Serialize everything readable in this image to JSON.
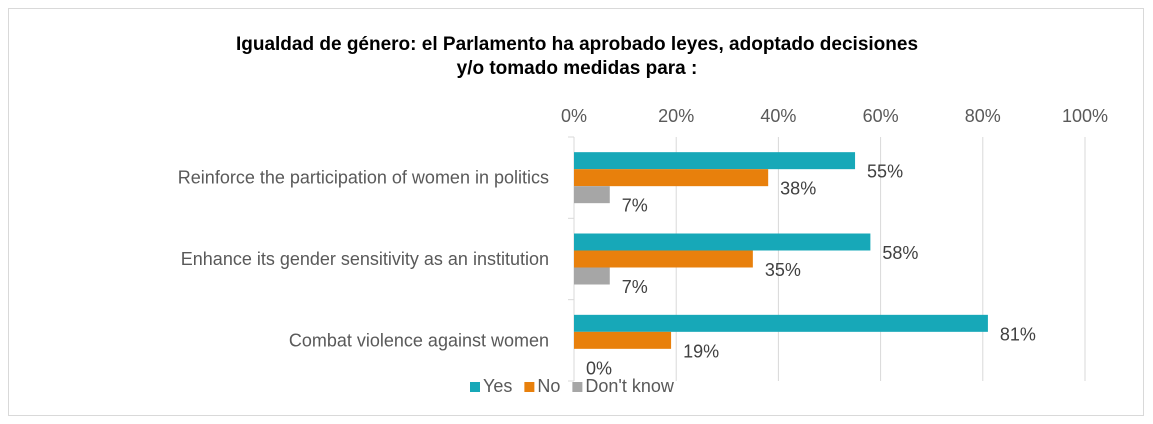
{
  "chart_data": {
    "type": "bar",
    "orientation": "horizontal",
    "title_lines": [
      "Igualdad de género: el Parlamento ha aprobado leyes, adoptado decisiones",
      "y/o tomado medidas para :"
    ],
    "categories": [
      "Reinforce the participation of women in politics",
      "Enhance its gender sensitivity as an institution",
      "Combat violence against women"
    ],
    "series": [
      {
        "name": "Yes",
        "color": "#17A8B8",
        "values": [
          55,
          58,
          81
        ],
        "labels": [
          "55%",
          "58%",
          "81%"
        ]
      },
      {
        "name": "No",
        "color": "#E8800C",
        "values": [
          38,
          35,
          19
        ],
        "labels": [
          "38%",
          "35%",
          "19%"
        ]
      },
      {
        "name": "Don't know",
        "color": "#A6A6A6",
        "values": [
          7,
          7,
          0
        ],
        "labels": [
          "7%",
          "7%",
          "0%"
        ]
      }
    ],
    "xlim": [
      0,
      100
    ],
    "x_ticks": [
      "0%",
      "20%",
      "40%",
      "60%",
      "80%",
      "100%"
    ],
    "x_axis_position": "top",
    "grid": true,
    "legend_position": "bottom"
  }
}
